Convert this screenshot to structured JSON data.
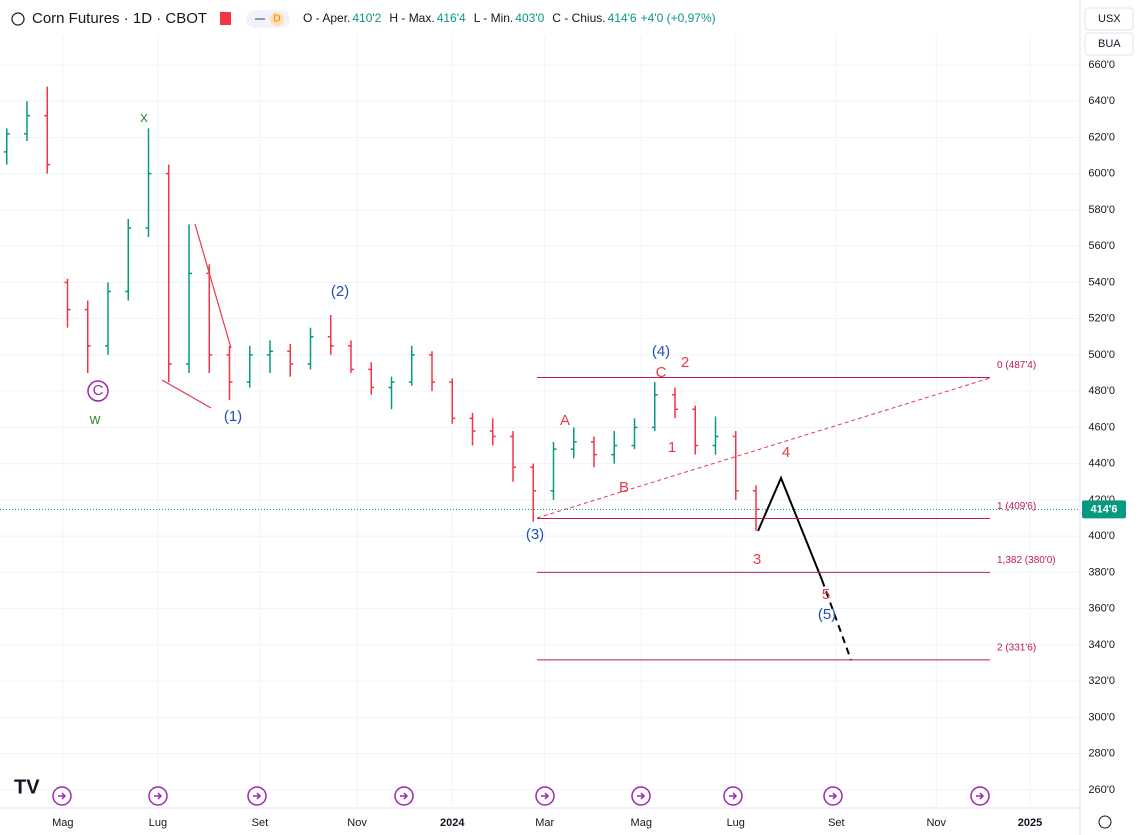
{
  "chart_data": {
    "type": "ohlc",
    "title": "Corn Futures · 1D · CBOT",
    "badge": "D",
    "header": [
      {
        "label": "O - Aper.",
        "value": "410'2"
      },
      {
        "label": "H - Max.",
        "value": "416'4"
      },
      {
        "label": "L - Min.",
        "value": "403'0"
      },
      {
        "label": "C - Chius.",
        "value": "414'6"
      }
    ],
    "change": "+4'0 (+0,97%)",
    "currency": "USX",
    "unit": "BUA",
    "up_color": "#089981",
    "down_color": "#f23645",
    "x": [
      1,
      4,
      7,
      10,
      13,
      16,
      19,
      22,
      25,
      28,
      31,
      34,
      37,
      40,
      43,
      46,
      49,
      52,
      55,
      58,
      61,
      64,
      67,
      70,
      73,
      76,
      79,
      82,
      85,
      88,
      91,
      94,
      97,
      100,
      103,
      106,
      109,
      112
    ],
    "open": [
      612,
      622,
      632,
      540,
      525,
      505,
      535,
      570,
      600,
      495,
      545,
      500,
      485,
      500,
      502,
      495,
      510,
      505,
      492,
      482,
      485,
      500,
      485,
      465,
      458,
      455,
      438,
      425,
      448,
      452,
      445,
      450,
      460,
      478,
      470,
      450,
      455,
      425
    ],
    "high": [
      625,
      640,
      648,
      542,
      530,
      540,
      575,
      625,
      605,
      572,
      550,
      505,
      505,
      508,
      506,
      515,
      522,
      508,
      496,
      488,
      505,
      502,
      487,
      468,
      465,
      458,
      440,
      452,
      460,
      455,
      458,
      465,
      485,
      482,
      472,
      466,
      458,
      428
    ],
    "low": [
      605,
      618,
      600,
      515,
      490,
      500,
      530,
      565,
      485,
      490,
      490,
      475,
      482,
      490,
      488,
      492,
      500,
      490,
      478,
      470,
      483,
      480,
      462,
      450,
      450,
      430,
      408,
      420,
      443,
      438,
      440,
      448,
      458,
      465,
      445,
      445,
      420,
      403
    ],
    "close": [
      622,
      632,
      605,
      525,
      505,
      535,
      570,
      600,
      495,
      545,
      500,
      485,
      500,
      502,
      495,
      510,
      505,
      492,
      482,
      485,
      500,
      485,
      465,
      458,
      455,
      438,
      425,
      448,
      452,
      445,
      450,
      460,
      478,
      470,
      450,
      455,
      425,
      414.75
    ],
    "xlim": [
      0,
      160
    ],
    "xticks": [
      {
        "value": 9.3,
        "label": "Mag"
      },
      {
        "value": 23.4,
        "label": "Lug"
      },
      {
        "value": 38.5,
        "label": "Set"
      },
      {
        "value": 52.9,
        "label": "Nov"
      },
      {
        "value": 67,
        "label": "2024"
      },
      {
        "value": 80.7,
        "label": "Mar"
      },
      {
        "value": 95,
        "label": "Mag"
      },
      {
        "value": 109,
        "label": "Lug"
      },
      {
        "value": 123.9,
        "label": "Set"
      },
      {
        "value": 138.7,
        "label": "Nov"
      },
      {
        "value": 152.6,
        "label": "2025"
      }
    ],
    "ylim": [
      250,
      676.5
    ],
    "yticks": [
      {
        "value": 260,
        "label": "260'0"
      },
      {
        "value": 280,
        "label": "280'0"
      },
      {
        "value": 300,
        "label": "300'0"
      },
      {
        "value": 320,
        "label": "320'0"
      },
      {
        "value": 340,
        "label": "340'0"
      },
      {
        "value": 360,
        "label": "360'0"
      },
      {
        "value": 380,
        "label": "380'0"
      },
      {
        "value": 400,
        "label": "400'0"
      },
      {
        "value": 420,
        "label": "420'0"
      },
      {
        "value": 440,
        "label": "440'0"
      },
      {
        "value": 460,
        "label": "460'0"
      },
      {
        "value": 480,
        "label": "480'0"
      },
      {
        "value": 500,
        "label": "500'0"
      },
      {
        "value": 520,
        "label": "520'0"
      },
      {
        "value": 540,
        "label": "540'0"
      },
      {
        "value": 560,
        "label": "560'0"
      },
      {
        "value": 580,
        "label": "580'0"
      },
      {
        "value": 600,
        "label": "600'0"
      },
      {
        "value": 620,
        "label": "620'0"
      },
      {
        "value": 640,
        "label": "640'0"
      },
      {
        "value": 660,
        "label": "660'0"
      }
    ],
    "grid": true,
    "last_price": {
      "value": 414.75,
      "label": "414'6"
    },
    "fib_color": "#c2185b",
    "fib_levels": [
      {
        "value": 487.5,
        "label": "0 (487'4)"
      },
      {
        "value": 409.75,
        "label": "1 (409'6)"
      },
      {
        "value": 380,
        "label": "1,382 (380'0)"
      },
      {
        "value": 331.75,
        "label": "2 (331'6)"
      }
    ],
    "annotations": [
      {
        "text": "x",
        "color": "#388e3c"
      },
      {
        "text": "w",
        "color": "#388e3c"
      },
      {
        "text": "C",
        "color": "#9c27b0"
      },
      {
        "text": "(1)",
        "color": "#1e50b4"
      },
      {
        "text": "(2)",
        "color": "#1e50b4"
      },
      {
        "text": "(3)",
        "color": "#1e50b4"
      },
      {
        "text": "(4)",
        "color": "#1e50b4"
      },
      {
        "text": "(5)",
        "color": "#1e50b4"
      },
      {
        "text": "A",
        "color": "#e53950"
      },
      {
        "text": "B",
        "color": "#e53950"
      },
      {
        "text": "C",
        "color": "#e53950"
      },
      {
        "text": "1",
        "color": "#e53950"
      },
      {
        "text": "2",
        "color": "#e53950"
      },
      {
        "text": "3",
        "color": "#e53950"
      },
      {
        "text": "4",
        "color": "#e53950"
      },
      {
        "text": "5",
        "color": "#e53950"
      }
    ]
  }
}
